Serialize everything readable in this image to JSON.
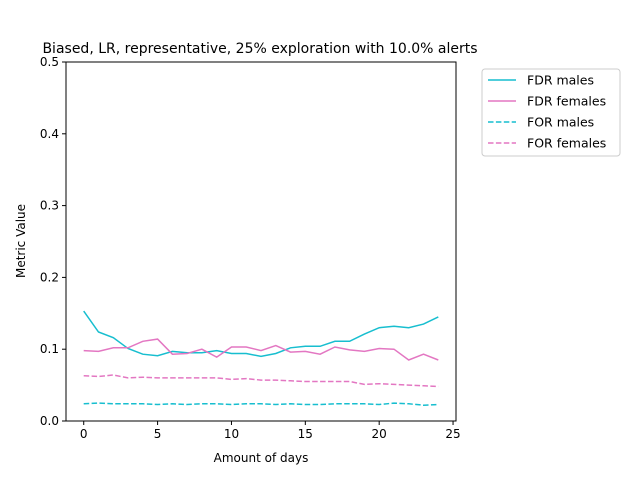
{
  "chart_data": {
    "type": "line",
    "title": "Biased, LR, representative, 25% exploration with 10.0% alerts",
    "xlabel": "Amount of days",
    "ylabel": "Metric Value",
    "xlim": [
      -1.2,
      25.2
    ],
    "ylim": [
      0,
      0.5
    ],
    "xticks": [
      0,
      5,
      10,
      15,
      20,
      25
    ],
    "yticks": [
      0.0,
      0.1,
      0.2,
      0.3,
      0.4,
      0.5
    ],
    "xtick_labels": [
      "0",
      "5",
      "10",
      "15",
      "20",
      "25"
    ],
    "ytick_labels": [
      "0.0",
      "0.1",
      "0.2",
      "0.3",
      "0.4",
      "0.5"
    ],
    "grid": false,
    "legend_position": "outside-top-right",
    "x": [
      0,
      1,
      2,
      3,
      4,
      5,
      6,
      7,
      8,
      9,
      10,
      11,
      12,
      13,
      14,
      15,
      16,
      17,
      18,
      19,
      20,
      21,
      22,
      23,
      24
    ],
    "series": [
      {
        "name": "FDR males",
        "color": "#17becf",
        "style": "solid",
        "values": [
          0.153,
          0.124,
          0.116,
          0.101,
          0.093,
          0.091,
          0.097,
          0.095,
          0.095,
          0.098,
          0.094,
          0.094,
          0.09,
          0.094,
          0.102,
          0.104,
          0.104,
          0.111,
          0.111,
          0.121,
          0.13,
          0.132,
          0.13,
          0.135,
          0.145
        ]
      },
      {
        "name": "FDR females",
        "color": "#e377c2",
        "style": "solid",
        "values": [
          0.098,
          0.097,
          0.102,
          0.102,
          0.111,
          0.114,
          0.093,
          0.094,
          0.1,
          0.089,
          0.103,
          0.103,
          0.098,
          0.105,
          0.096,
          0.097,
          0.093,
          0.103,
          0.099,
          0.097,
          0.101,
          0.1,
          0.085,
          0.093,
          0.085
        ]
      },
      {
        "name": "FOR males",
        "color": "#17becf",
        "style": "dashed",
        "values": [
          0.024,
          0.025,
          0.024,
          0.024,
          0.024,
          0.023,
          0.024,
          0.023,
          0.024,
          0.024,
          0.023,
          0.024,
          0.024,
          0.023,
          0.024,
          0.023,
          0.023,
          0.024,
          0.024,
          0.024,
          0.023,
          0.025,
          0.024,
          0.022,
          0.023
        ]
      },
      {
        "name": "FOR females",
        "color": "#e377c2",
        "style": "dashed",
        "values": [
          0.063,
          0.062,
          0.064,
          0.06,
          0.061,
          0.06,
          0.06,
          0.06,
          0.06,
          0.06,
          0.058,
          0.059,
          0.057,
          0.057,
          0.056,
          0.055,
          0.055,
          0.055,
          0.055,
          0.051,
          0.052,
          0.051,
          0.05,
          0.049,
          0.048
        ]
      }
    ]
  }
}
